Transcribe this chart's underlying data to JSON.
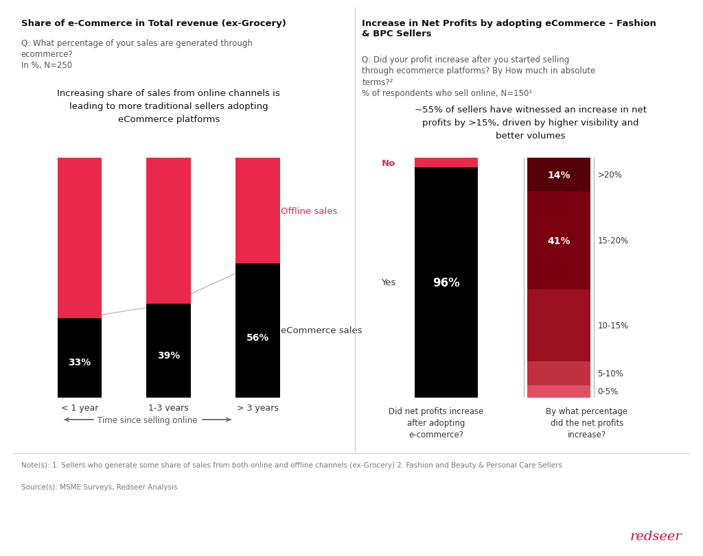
{
  "background_color": "#ffffff",
  "left_panel": {
    "title": "Share of e-Commerce in Total revenue (ex-Grocery)",
    "subtitle_line1": "Q: What percentage of your sales are generated through",
    "subtitle_line2": "ecommerce?",
    "subtitle_line3": "In %, N=250",
    "insight": "Increasing share of sales from online channels is\nleading to more traditional sellers adopting\neCommerce platforms",
    "categories": [
      "< 1 year",
      "1-3 years",
      "> 3 years"
    ],
    "ecommerce_pct": [
      33,
      39,
      56
    ],
    "offline_pct": [
      67,
      61,
      44
    ],
    "ecommerce_color": "#000000",
    "offline_color": "#e8294c",
    "label_offline": "Offline sales",
    "label_ecommerce": "eCommerce sales",
    "label_offline_color": "#e8294c",
    "label_ecommerce_color": "#333333",
    "x_axis_label": "Time since selling online",
    "bar_width": 0.5
  },
  "right_panel": {
    "title_bold": "Increase in Net Profits by adopting eCommerce – Fashion\n& BPC Sellers",
    "subtitle_line1": "Q: Did your profit increase after you started selling",
    "subtitle_line2": "through ecommerce platforms? By How much in absolute",
    "subtitle_line3": "terms?²",
    "subtitle_line4": "% of respondents who sell online, N=150¹",
    "insight": "~55% of sellers have witnessed an increase in net\nprofits by >15%, driven by higher visibility and\nbetter volumes",
    "bar1_yes_pct": 96,
    "bar1_no_pct": 4,
    "bar1_yes_color": "#000000",
    "bar1_no_color": "#e8294c",
    "bar1_yes_label": "96%",
    "bar1_label_yes": "Yes",
    "bar1_label_no": "No",
    "bar2_segments": [
      5,
      10,
      30,
      41,
      14
    ],
    "bar2_labels": [
      "0-5%",
      "5-10%",
      "10-15%",
      "15-20%",
      ">20%"
    ],
    "bar2_colors": [
      "#e05060",
      "#c03040",
      "#9a1020",
      "#7a0010",
      "#560008"
    ],
    "bar2_text_labels": [
      "",
      "",
      "",
      "41%",
      "14%"
    ],
    "xlabel1": "Did net profits increase\nafter adopting\ne-commerce?",
    "xlabel2": "By what percentage\ndid the net profits\nincrease?"
  },
  "footer_note": "Note(s): 1. Sellers who generate some share of sales from both online and offline channels (ex-Grocery) 2. Fashion and Beauty & Personal Care Sellers",
  "footer_source": "Source(s): MSME Surveys, Redseer Analysis",
  "redseer_color": "#cc1133",
  "divider_color": "#cccccc"
}
